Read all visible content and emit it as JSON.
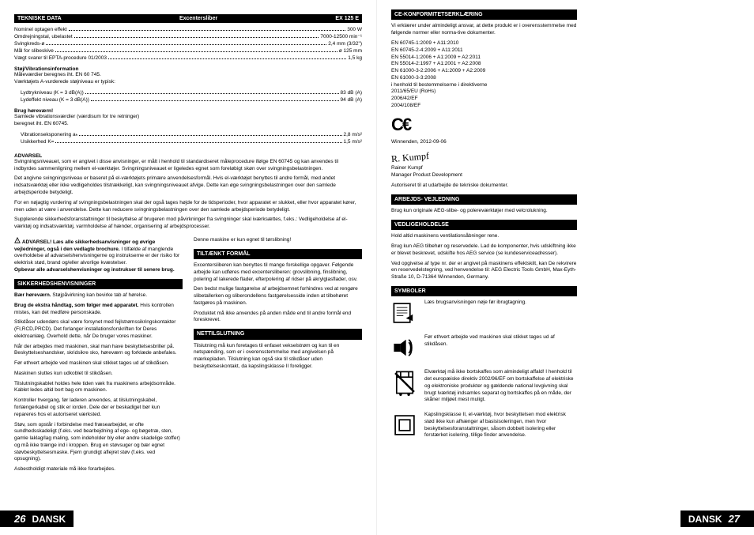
{
  "leftPage": {
    "techHeader": {
      "col1": "TEKNISKE DATA",
      "col2": "Excentersliber",
      "col3": "EX 125 E"
    },
    "techRows": [
      {
        "label": "Nominel optagen effekt",
        "value": "300 W"
      },
      {
        "label": "Omdrejningstal, ubelastet",
        "value": "7000-12500 min⁻¹"
      },
      {
        "label": "Svingkreds-ø",
        "value": "2,4 mm (3/32\")"
      },
      {
        "label": "Mål for slibeskive",
        "value": "ø 125 mm"
      },
      {
        "label": "Vægt svarer til EPTA-procedure 01/2003",
        "value": "1,5 kg"
      }
    ],
    "noiseHead": "Støj/Vibrationsinformation",
    "noiseIntro": "Måleværdier beregnes iht. EN 60 745.\nVærktøjets A-vurderede støjniveau er typisk:",
    "noiseRows": [
      {
        "label": "Lydtrykniveau (K = 3 dB(A))",
        "value": "83 dB (A)",
        "indent": true
      },
      {
        "label": "Lydeffekt niveau (K = 3 dB(A))",
        "value": "94 dB (A)",
        "indent": true
      }
    ],
    "wearProtection": "Brug høreværn!",
    "vibIntro": "Samlede vibrationsværdier (værdisum for tre retninger)\nberegnet iht. EN 60745.",
    "vibRows": [
      {
        "label": "Vibrationseksponering aₕ",
        "value": "2,8 m/s²",
        "indent": true
      },
      {
        "label": "Usikkerhed K=",
        "value": "1,5 m/s²",
        "indent": true
      }
    ],
    "advarselHead": "ADVARSEL",
    "advarselParas": [
      "Svingningsniveauet, som er angivet i disse anvisninger, er målt i henhold til standardiseret måleprocedure ifølge EN 60745 og kan anvendes til indbyrdes sammenligning mellem el-værktøjer. Svingningsniveauet er ligeledes egnet som foreløbigt skøn over svingningsbelastningen.",
      "Det angivne svingningsniveau er baseret på el-værktøjets primære anvendelsesformål. Hvis el-værktøjet benyttes til andre formål, med andet indsatsværktøj eller ikke vedligeholdes tilstrækkeligt, kan svingningsniveauet afvige. Dette kan øge svingningsbelastningen over den samlede arbejdsperiode betydeligt.",
      "For en nøjagtig vurdering af svingningsbelastningen skal der også tages højde for de tidsperioder, hvor apparatet er slukket, eller hvor apparatet kører, men uden at være i anvendelse. Dette kan reducere svingningsbelastningen over den samlede arbejdsperiode betydeligt.",
      "Supplerende sikkerhedsforanstaltninger til beskyttelse af brugeren mod påvirkninger fra svingninger skal iværksættes, f.eks.: Vedligeholdelse af el-værktøj og indsatsværktøj, varmholdelse af hænder, organisering af arbejdsprocesser."
    ],
    "col1": {
      "warnBlock": "ADVARSEL! Læs alle sikkerhedsanvisninger og øvrige vejledninger, også i den vedlagte brochure.",
      "warnRest": " I tilfælde af manglende overholdelse af advarselshenvisningerne og instrukserne er der risiko for elektrisk stød, brand og/eller alvorlige kvæstelser.",
      "warnKeep": "Opbevar alle advarselshenvisninger og instrukser til senere brug.",
      "sikkerHead": "SIKKERHEDSHENVISNINGER",
      "sikkerParas": [
        "<b>Bær høreværn.</b> Støjpåvirkning kan bevirke tab af hørelse.",
        "<b>Brug de ekstra håndtag, som følger med apparatet.</b> Hvis kontrollen mistes, kan det medføre personskade.",
        "Stikdåser udendørs skal være forsynet med fejlstrømssikringskontakter (FI,RCD,PRCD). Det forlanger installationsforskriften for Deres elektroanlæg. Overhold dette, når De bruger vores maskiner.",
        "Når der arbejdes med maskinen, skal man have beskyttelsesbriller på. Beskyttelseshandsker, skridsikre sko, høreværn og forklæde anbefales.",
        "Før ethvert arbejde ved maskinen skal stikket tages ud af stikdåsen.",
        "Maskinen sluttes kun udkoblet til stikdåsen.",
        "Tilslutningskablet holdes hele tiden væk fra maskinens arbejdsområde. Kablet ledes altid bort bag om maskinen.",
        "Kontroller hvergang, før laderen anvendes, at tilslutningskabel, forlængerkabel og stik er iorden. Dele der er beskadiget bør kun repareres hos et autoriseret værksted.",
        "Støv, som opstår i forbindelse med fræsearbejdet, er ofte sundhedsskadeligt (f.eks. ved bearbejdning af ege- og bøgetræ, sten, gamle laklag/lag maling, som indeholder bly eller andre skadelige stoffer) og må ikke trænge ind i kroppen. Brug en støvsuger og bær egnet støvbeskyttelsesmaske. Fjern grundigt aflejret støv (f.eks. ved opsugning).",
        "Asbestholdigt materiale må ikke forarbejdes."
      ]
    },
    "col2": {
      "intro": "Denne maskine er kun egnet til tørslibning!",
      "tiltHead": "TILTÆNKT FORMÅL",
      "tiltParas": [
        "Excentersliberen kan benyttes til mange forskellige opgaver. Følgende arbejde kan udføres med excentersliberen: grovslibning, finslibning, polering af lakerede flader, efterpolering af ridser på akrylglasflader, osv.",
        "Den bedst mulige fastgørelse af arbejdsemnet forhindres ved at rengøre slibetallerken og sliberondellens fastgørelsesside inden at tilbehøret fastgøres på maskinen.",
        "Produktet må ikke anvendes på anden måde end til andre formål end foreskrevet."
      ],
      "netHead": "NETTILSLUTNING",
      "netPara": "Tilslutning må kun foretages til enfaset vekselstrøm og kun til en netspænding, som er i overensstemmelse med angivelsen på mærkepladen. Tilslutning kan også ske til stikdåser uden beskyttelseskontakt, da kapslingsklasse II foreligger."
    },
    "footer": {
      "num": "26",
      "lang": "DANSK"
    }
  },
  "rightPage": {
    "ceHead": "CE-KONFORMITETSERKLÆRING",
    "cePara": "Vi erklærer under almindeligt ansvar, at dette produkt er i overensstemmelse med følgende normer eller norma-tive dokumenter.",
    "ceNorms": [
      "EN 60745-1:2009 + A11:2010",
      "EN 60745-2-4:2009 + A11:2011",
      "EN 55014-1:2006 + A1:2009 + A2:2011",
      "EN 55014-2:1997 + A1:2001 + A2:2008",
      "EN 61000-3-2:2006 + A1:2009 + A2:2009",
      "EN 61000-3-3:2008",
      "i henhold til bestemmelserne i direktiverne",
      "2011/65/EU (RoHs)",
      "2006/42/EF",
      "2004/108/EF"
    ],
    "ceLoc": "Winnenden, 2012-09-06",
    "sigName": "Rainer Kumpf",
    "sigTitle": "Manager Product Development",
    "sigAuth": "Autoriseret til at udarbejde de tekniske dokumenter.",
    "arbHead": "ARBEJDS- VEJLEDNING",
    "arbPara": "Brug kun originale AEG-slibe- og polereværktøjer med velcrolukning.",
    "vedHead": "VEDLIGEHOLDELSE",
    "vedParas": [
      "Hold altid maskinens ventilationsåbninger rene.",
      "Brug kun AEG tilbehør og reservedele. Lad de komponenter, hvis udskiftning ikke er blevet beskrevet, udskifte hos AEG service (se kundeserviceadresser).",
      "Ved opgivelse af type nr. der er angivet på maskinens effektskilt, kan De rekvirere en reservedelstegning, ved henvendelse til: AEG Electric Tools GmbH, Max-Eyth-Straße 10, D-71364 Winnenden, Germany."
    ],
    "symHead": "SYMBOLER",
    "symbols": [
      {
        "text": "Læs brugsanvisningen nøje før ibrugtagning."
      },
      {
        "text": "Før ethvert arbejde ved maskinen skal stikket tages ud af stikdåsen."
      },
      {
        "text": "Elværktøj må ikke bortskaffes som almindeligt affald! I henhold til det europæiske direktiv 2002/96/EF om bortskaffelse af elektriske og elektroniske produkter og gældende national lovgivning skal brugt lværktøj indsamles separat og bortskaffes på en måde, der skåner miljøet mest muligt."
      },
      {
        "text": "Kapslingsklasse II, el-værktøj, hvor beskyttelsen mod elektrisk stød ikke kun afhænger af basisisoleringen, men hvor beskyttelsesforanstaltninger, såsom dobbelt isolering eller forstærket isolering, tillige finder anvendelse."
      }
    ],
    "footer": {
      "lang": "DANSK",
      "num": "27"
    }
  }
}
